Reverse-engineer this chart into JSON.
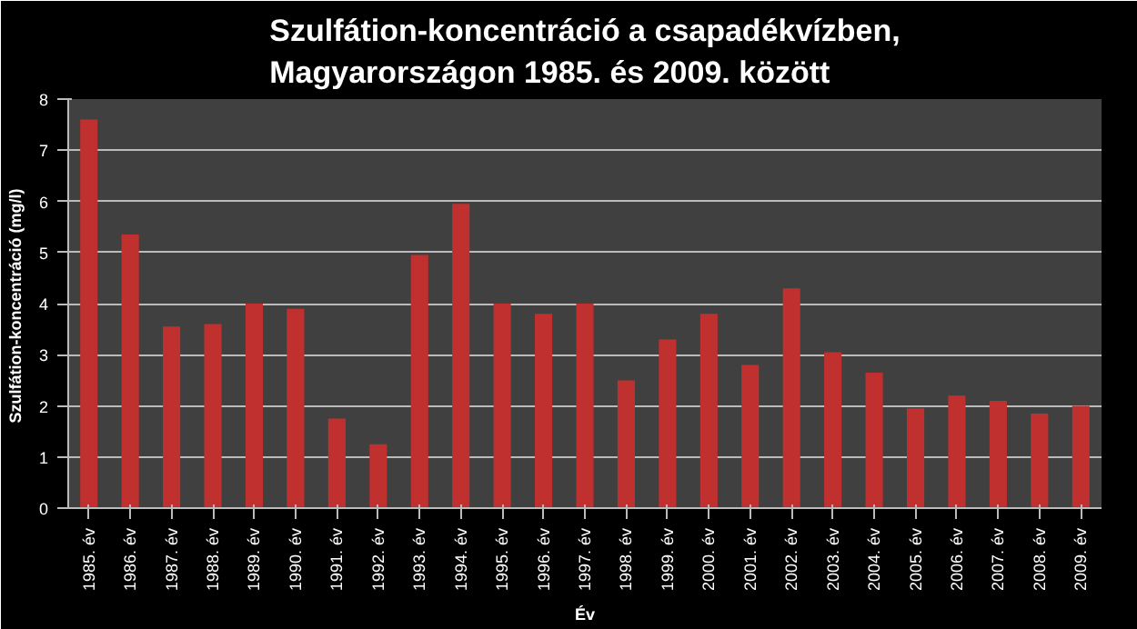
{
  "chart_data": {
    "type": "bar",
    "title": "Szulfátion-koncentráció a csapadékvízben,\nMagyarországon 1985. és 2009. között",
    "xlabel": "Év",
    "ylabel": "Szulfátion-koncentráció  (mg/l)",
    "categories": [
      "1985. év",
      "1986. év",
      "1987. év",
      "1988. év",
      "1989. év",
      "1990. év",
      "1991. év",
      "1992. év",
      "1993. év",
      "1994. év",
      "1995. év",
      "1996. év",
      "1997. év",
      "1998. év",
      "1999. év",
      "2000. év",
      "2001. év",
      "2002. év",
      "2003. év",
      "2004. év",
      "2005. év",
      "2006. év",
      "2007. év",
      "2008. év",
      "2009. év"
    ],
    "values": [
      7.6,
      5.35,
      3.55,
      3.6,
      4.0,
      3.9,
      1.75,
      1.25,
      4.95,
      5.95,
      4.0,
      3.8,
      4.0,
      2.5,
      3.3,
      3.8,
      2.8,
      4.3,
      3.05,
      2.65,
      1.95,
      2.2,
      2.1,
      1.85,
      2.0
    ],
    "color": "#c0302f",
    "ylim": [
      0,
      8
    ],
    "yticks": [
      0,
      1,
      2,
      3,
      4,
      5,
      6,
      7,
      8
    ],
    "grid": "y"
  }
}
